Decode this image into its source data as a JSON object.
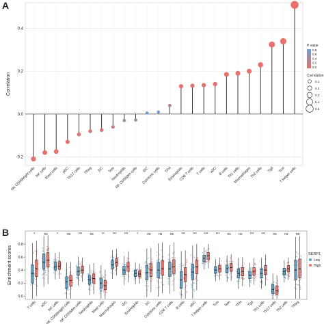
{
  "panels": {
    "a_letter": "A",
    "b_letter": "B"
  },
  "chart_data": [
    {
      "type": "scatter",
      "subtype": "lollipop",
      "panel": "A",
      "ylabel": "Correlation",
      "ylim": [
        -0.24,
        0.52
      ],
      "yticks": [
        -0.2,
        0.0,
        0.2,
        0.4
      ],
      "ytick_labels": [
        "-0.2",
        "0.0",
        "0.2",
        "0.4"
      ],
      "grid": true,
      "legend_placement": "right",
      "legend": {
        "color_title": "P value",
        "color_ticks": [
          "0.8",
          "0.6",
          "0.4",
          "0.2",
          "0.0"
        ],
        "size_title": "Correlation",
        "size_ticks": [
          "0.1",
          "0.2",
          "0.3",
          "0.4",
          "0.5"
        ],
        "low_color": "#6e9ed1",
        "high_color": "#e8716b"
      },
      "categories": [
        "NK CD56bright cells",
        "NK cells",
        "Mast cells",
        "pDC",
        "Th17 cells",
        "TReg",
        "DC",
        "Tem",
        "Neutrophils",
        "NK CD56dim cells",
        "iDC",
        "Cytotoxic cells",
        "TFH",
        "Eosinophils",
        "CD8 T cells",
        "T cells",
        "aDC",
        "B cells",
        "Th1 cells",
        "Macrophages",
        "Th2 cells",
        "Tgd",
        "Tcm",
        "T helper cells"
      ],
      "values": [
        -0.21,
        -0.18,
        -0.175,
        -0.13,
        -0.095,
        -0.08,
        -0.075,
        -0.06,
        -0.03,
        -0.028,
        0.005,
        0.01,
        0.04,
        0.13,
        0.132,
        0.135,
        0.14,
        0.185,
        0.19,
        0.2,
        0.23,
        0.325,
        0.34,
        0.51
      ],
      "p_values": [
        0.0,
        0.0,
        0.0,
        0.02,
        0.05,
        0.1,
        0.1,
        0.2,
        0.45,
        0.5,
        0.85,
        0.8,
        0.4,
        0.05,
        0.05,
        0.05,
        0.04,
        0.01,
        0.01,
        0.01,
        0.0,
        0.0,
        0.0,
        0.0
      ]
    },
    {
      "type": "scatter",
      "subtype": "box-jitter",
      "panel": "B",
      "ylabel": "Enrichment scores",
      "ylim": [
        -0.05,
        1.0
      ],
      "yticks": [
        0.0,
        0.2,
        0.4,
        0.6,
        0.8
      ],
      "ytick_labels": [
        "0.0",
        "0.2",
        "0.4",
        "0.6",
        "0.8"
      ],
      "legend_placement": "right",
      "legend": {
        "title": "SERP1",
        "entries": [
          "Low",
          "High"
        ]
      },
      "categories": [
        "T cells",
        "aDC",
        "NK cells",
        "NK CD56bright cells",
        "NK CD56dim cells",
        "Neutrophils",
        "Mast cells",
        "Macrophages",
        "iDC",
        "Eosinophils",
        "DC",
        "Cytotoxic cells",
        "CD8 T cells",
        "B cells",
        "aDC",
        "T helper cells",
        "Tcm",
        "Tem",
        "TFH",
        "Tgd",
        "Th1 cells",
        "Th17 cells",
        "Th2 cells",
        "TReg"
      ],
      "significance": [
        "*",
        "ns",
        "*",
        "ns",
        "***",
        "ns",
        "**",
        "***",
        "***",
        "*",
        "ns",
        "ns",
        "ns",
        "***",
        "***",
        "***",
        "***",
        "ns",
        "ns",
        "***",
        "***",
        "ns",
        "ns",
        "ns"
      ],
      "series": [
        {
          "name": "Low",
          "color": "#5aa0c8",
          "medians": [
            0.35,
            0.52,
            0.45,
            0.22,
            0.38,
            0.25,
            0.2,
            0.48,
            0.4,
            0.35,
            0.36,
            0.4,
            0.42,
            0.25,
            0.37,
            0.58,
            0.4,
            0.42,
            0.35,
            0.32,
            0.35,
            0.1,
            0.38,
            0.4
          ],
          "q1": [
            0.2,
            0.42,
            0.4,
            0.12,
            0.32,
            0.18,
            0.12,
            0.42,
            0.33,
            0.3,
            0.25,
            0.28,
            0.3,
            0.12,
            0.25,
            0.53,
            0.35,
            0.36,
            0.28,
            0.27,
            0.28,
            0.04,
            0.33,
            0.25
          ],
          "q3": [
            0.48,
            0.65,
            0.52,
            0.3,
            0.45,
            0.32,
            0.28,
            0.55,
            0.46,
            0.4,
            0.47,
            0.52,
            0.52,
            0.38,
            0.49,
            0.63,
            0.45,
            0.48,
            0.42,
            0.38,
            0.42,
            0.18,
            0.43,
            0.55
          ]
        },
        {
          "name": "High",
          "color": "#e8716b",
          "medians": [
            0.42,
            0.55,
            0.46,
            0.24,
            0.4,
            0.27,
            0.16,
            0.52,
            0.45,
            0.34,
            0.4,
            0.42,
            0.45,
            0.33,
            0.45,
            0.62,
            0.42,
            0.44,
            0.38,
            0.38,
            0.4,
            0.08,
            0.42,
            0.42
          ],
          "q1": [
            0.3,
            0.45,
            0.41,
            0.15,
            0.35,
            0.2,
            0.1,
            0.46,
            0.38,
            0.3,
            0.3,
            0.32,
            0.34,
            0.22,
            0.34,
            0.56,
            0.37,
            0.38,
            0.31,
            0.32,
            0.33,
            0.03,
            0.37,
            0.28
          ],
          "q3": [
            0.55,
            0.67,
            0.53,
            0.32,
            0.46,
            0.34,
            0.24,
            0.58,
            0.52,
            0.39,
            0.5,
            0.55,
            0.56,
            0.44,
            0.55,
            0.67,
            0.47,
            0.5,
            0.44,
            0.44,
            0.47,
            0.16,
            0.47,
            0.57
          ]
        }
      ]
    }
  ]
}
